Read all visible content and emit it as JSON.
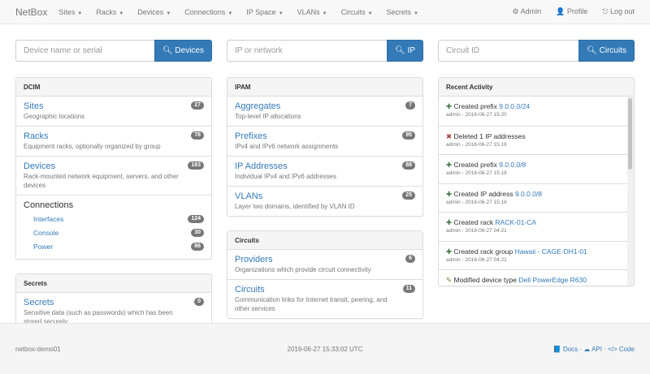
{
  "nav": {
    "brand": "NetBox",
    "menus": [
      "Sites",
      "Racks",
      "Devices",
      "Connections",
      "IP Space",
      "VLANs",
      "Circuits",
      "Secrets"
    ],
    "right": [
      {
        "icon": "gear-icon",
        "glyph": "⚙",
        "label": "Admin"
      },
      {
        "icon": "user-icon",
        "glyph": "👤",
        "label": "Profile"
      },
      {
        "icon": "logout-icon",
        "glyph": "⎋",
        "label": "Log out"
      }
    ]
  },
  "search": [
    {
      "placeholder": "Device name or serial",
      "button": "Devices"
    },
    {
      "placeholder": "IP or network",
      "button": "IP"
    },
    {
      "placeholder": "Circuit ID",
      "button": "Circuits"
    }
  ],
  "dcim": {
    "title": "DCIM",
    "items": [
      {
        "label": "Sites",
        "desc": "Geographic locations",
        "count": "27"
      },
      {
        "label": "Racks",
        "desc": "Equipment racks, optionally organized by group",
        "count": "78"
      },
      {
        "label": "Devices",
        "desc": "Rack-mounted network equipment, servers, and other devices",
        "count": "163"
      }
    ],
    "connections": {
      "label": "Connections",
      "items": [
        {
          "label": "Interfaces",
          "count": "124"
        },
        {
          "label": "Console",
          "count": "30"
        },
        {
          "label": "Power",
          "count": "86"
        }
      ]
    }
  },
  "secrets": {
    "title": "Secrets",
    "items": [
      {
        "label": "Secrets",
        "desc": "Sensitive data (such as passwords) which has been stored securely",
        "count": "0"
      }
    ]
  },
  "ipam": {
    "title": "IPAM",
    "items": [
      {
        "label": "Aggregates",
        "desc": "Top-level IP allocations",
        "count": "7"
      },
      {
        "label": "Prefixes",
        "desc": "IPv4 and IPv6 network assignments",
        "count": "95"
      },
      {
        "label": "IP Addresses",
        "desc": "Individual IPv4 and IPv6 addresses",
        "count": "88"
      },
      {
        "label": "VLANs",
        "desc": "Layer two domains, identified by VLAN ID",
        "count": "25"
      }
    ]
  },
  "circuits": {
    "title": "Circuits",
    "items": [
      {
        "label": "Providers",
        "desc": "Organizations which provide circuit connectivity",
        "count": "6"
      },
      {
        "label": "Circuits",
        "desc": "Communication links for Internet transit, peering, and other services",
        "count": "11"
      }
    ]
  },
  "activity": {
    "title": "Recent Activity",
    "colors": {
      "created": "#3c763d",
      "deleted": "#a94442",
      "modified": "#8a6d3b"
    },
    "items": [
      {
        "type": "created",
        "text": "Created prefix",
        "link": "9.0.0.0/24",
        "meta": "admin - 2016-06-27 15:20"
      },
      {
        "type": "deleted",
        "text": "Deleted 1 IP addresses",
        "link": "",
        "meta": "admin - 2016-06-27 15:19"
      },
      {
        "type": "created",
        "text": "Created prefix",
        "link": "9.0.0.0/8",
        "meta": "admin - 2016-06-27 15:19"
      },
      {
        "type": "created",
        "text": "Created IP address",
        "link": "9.0.0.0/8",
        "meta": "admin - 2016-06-27 15:18"
      },
      {
        "type": "created",
        "text": "Created rack",
        "link": "RACK-01-CA",
        "meta": "admin - 2016-06-27 04:21"
      },
      {
        "type": "created",
        "text": "Created rack group",
        "link": "Hawaii - CAGE-DH1-01",
        "meta": "admin - 2016-06-27 04:21"
      },
      {
        "type": "modified",
        "text": "Modified device type",
        "link": "Dell PowerEdge R630",
        "meta": ""
      }
    ]
  },
  "footer": {
    "host": "netbox-demo01",
    "time": "2016-06-27 15:33:02 UTC",
    "links": [
      "Docs",
      "API",
      "Code"
    ]
  }
}
